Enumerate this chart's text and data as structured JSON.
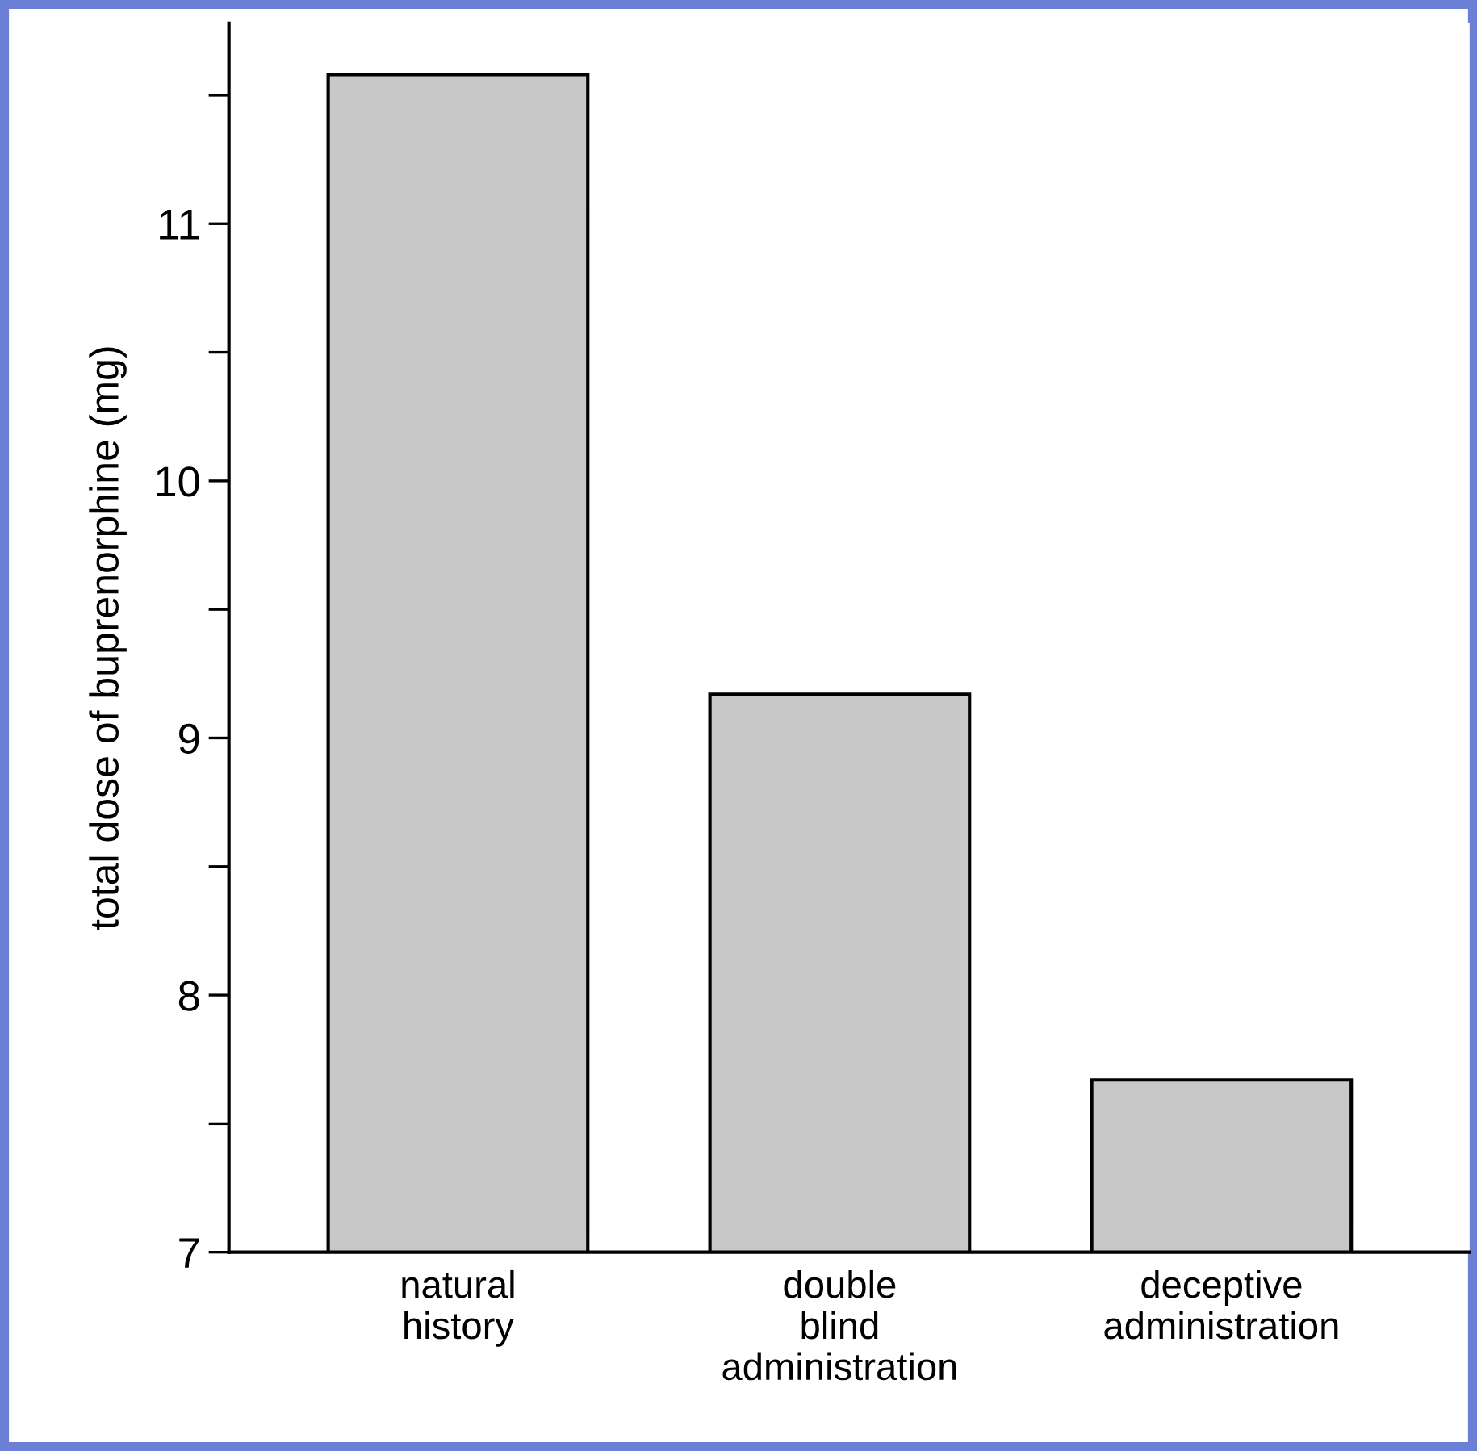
{
  "chart_data": {
    "type": "bar",
    "ylabel": "total dose of buprenorphine (mg)",
    "categories": [
      "natural\nhistory",
      "double\nblind\nadministration",
      "deceptive\nadministration"
    ],
    "values": [
      11.58,
      9.17,
      7.67
    ],
    "color": "#c8c8c8",
    "ylim": [
      7,
      11.78
    ],
    "yticks": [
      7,
      {
        "value": 7.5,
        "label": null
      },
      8,
      {
        "value": 8.5,
        "label": null
      },
      9,
      {
        "value": 9.5,
        "label": null
      },
      10,
      {
        "value": 10.5,
        "label": null
      },
      11,
      {
        "value": 11.5,
        "label": null
      }
    ],
    "grid": false,
    "legend": false
  }
}
